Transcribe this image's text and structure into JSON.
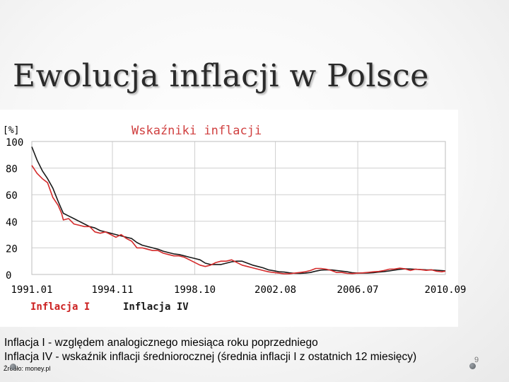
{
  "slide": {
    "title": "Ewolucja inflacji w Polsce",
    "caption_line1": "Inflacja I - względem analogicznego miesiąca roku poprzedniego",
    "caption_line2": "Inflacja IV - wskaźnik inflacji średniorocznej (średnia inflacji I z ostatnich 12 miesięcy)",
    "source": "Źródło: money.pl",
    "page_number": "9"
  },
  "chart_data": {
    "type": "line",
    "title": "Wskaźniki inflacji",
    "ylabel": "[%]",
    "xlabel": "",
    "ylim": [
      0,
      100
    ],
    "xlim": [
      "1991.01",
      "2010.09"
    ],
    "grid": true,
    "legend_position": "bottom-left",
    "colors": {
      "title": "#d04040",
      "legend": "#cc2222",
      "inflacja_I": "#d42a2a",
      "inflacja_IV": "#1a1a1a",
      "grid": "#cfcfcf",
      "axis_text": "#000000"
    },
    "x_ticks": [
      "1991.01",
      "1994.11",
      "1998.10",
      "2002.08",
      "2006.07",
      "2010.09"
    ],
    "y_ticks": [
      0,
      20,
      40,
      60,
      80,
      100
    ],
    "series": [
      {
        "name": "Inflacja I",
        "points": [
          [
            "1991.01",
            82
          ],
          [
            "1991.04",
            76
          ],
          [
            "1991.07",
            72
          ],
          [
            "1991.10",
            69
          ],
          [
            "1992.01",
            58
          ],
          [
            "1992.04",
            52
          ],
          [
            "1992.06",
            46
          ],
          [
            "1992.07",
            41
          ],
          [
            "1992.10",
            42
          ],
          [
            "1993.01",
            38
          ],
          [
            "1993.04",
            37
          ],
          [
            "1993.07",
            36
          ],
          [
            "1993.10",
            36
          ],
          [
            "1994.01",
            32
          ],
          [
            "1994.04",
            31
          ],
          [
            "1994.07",
            32
          ],
          [
            "1994.10",
            30
          ],
          [
            "1995.01",
            28
          ],
          [
            "1995.04",
            30
          ],
          [
            "1995.07",
            27
          ],
          [
            "1995.10",
            25
          ],
          [
            "1996.01",
            20
          ],
          [
            "1996.04",
            20
          ],
          [
            "1996.07",
            19
          ],
          [
            "1996.10",
            18
          ],
          [
            "1997.01",
            18
          ],
          [
            "1997.04",
            16
          ],
          [
            "1997.07",
            15
          ],
          [
            "1997.10",
            14
          ],
          [
            "1998.01",
            14
          ],
          [
            "1998.04",
            13
          ],
          [
            "1998.07",
            11
          ],
          [
            "1998.10",
            9
          ],
          [
            "1999.01",
            7
          ],
          [
            "1999.04",
            6
          ],
          [
            "1999.07",
            7
          ],
          [
            "1999.10",
            9
          ],
          [
            "2000.01",
            10
          ],
          [
            "2000.04",
            10
          ],
          [
            "2000.07",
            11
          ],
          [
            "2000.10",
            9
          ],
          [
            "2001.01",
            7
          ],
          [
            "2001.04",
            6
          ],
          [
            "2001.07",
            5
          ],
          [
            "2001.10",
            4
          ],
          [
            "2002.01",
            3
          ],
          [
            "2002.04",
            2
          ],
          [
            "2002.07",
            1.5
          ],
          [
            "2002.10",
            1
          ],
          [
            "2003.01",
            0.5
          ],
          [
            "2003.04",
            0.6
          ],
          [
            "2003.07",
            1
          ],
          [
            "2003.10",
            1.5
          ],
          [
            "2004.01",
            2
          ],
          [
            "2004.04",
            3
          ],
          [
            "2004.07",
            4.5
          ],
          [
            "2004.10",
            4.5
          ],
          [
            "2005.01",
            4
          ],
          [
            "2005.04",
            3
          ],
          [
            "2005.07",
            1.5
          ],
          [
            "2005.10",
            1.5
          ],
          [
            "2006.01",
            0.8
          ],
          [
            "2006.04",
            0.7
          ],
          [
            "2006.07",
            1
          ],
          [
            "2006.10",
            1.2
          ],
          [
            "2007.01",
            1.6
          ],
          [
            "2007.04",
            2
          ],
          [
            "2007.07",
            2.3
          ],
          [
            "2007.10",
            3
          ],
          [
            "2008.01",
            4
          ],
          [
            "2008.04",
            4.1
          ],
          [
            "2008.07",
            4.8
          ],
          [
            "2008.10",
            4.2
          ],
          [
            "2009.01",
            3
          ],
          [
            "2009.04",
            4
          ],
          [
            "2009.07",
            3.6
          ],
          [
            "2009.10",
            3.1
          ],
          [
            "2010.01",
            3.5
          ],
          [
            "2010.04",
            2.4
          ],
          [
            "2010.07",
            2
          ],
          [
            "2010.09",
            2.5
          ]
        ]
      },
      {
        "name": "Inflacja IV",
        "points": [
          [
            "1991.01",
            96
          ],
          [
            "1991.04",
            86
          ],
          [
            "1991.07",
            78
          ],
          [
            "1991.10",
            72
          ],
          [
            "1992.01",
            65
          ],
          [
            "1992.04",
            55
          ],
          [
            "1992.06",
            49
          ],
          [
            "1992.07",
            46
          ],
          [
            "1992.10",
            44
          ],
          [
            "1993.01",
            42
          ],
          [
            "1993.04",
            40
          ],
          [
            "1993.07",
            38
          ],
          [
            "1993.10",
            36
          ],
          [
            "1994.01",
            35
          ],
          [
            "1994.04",
            33
          ],
          [
            "1994.07",
            32
          ],
          [
            "1994.10",
            31
          ],
          [
            "1995.01",
            30
          ],
          [
            "1995.04",
            29
          ],
          [
            "1995.07",
            28
          ],
          [
            "1995.10",
            27
          ],
          [
            "1996.01",
            24
          ],
          [
            "1996.04",
            22
          ],
          [
            "1996.07",
            21
          ],
          [
            "1996.10",
            20
          ],
          [
            "1997.01",
            19
          ],
          [
            "1997.04",
            17.5
          ],
          [
            "1997.07",
            16.5
          ],
          [
            "1997.10",
            15.5
          ],
          [
            "1998.01",
            15
          ],
          [
            "1998.04",
            14
          ],
          [
            "1998.07",
            13
          ],
          [
            "1998.10",
            12
          ],
          [
            "1999.01",
            11
          ],
          [
            "1999.04",
            8.5
          ],
          [
            "1999.07",
            7.5
          ],
          [
            "1999.10",
            7.5
          ],
          [
            "2000.01",
            7.5
          ],
          [
            "2000.04",
            8.5
          ],
          [
            "2000.07",
            9.5
          ],
          [
            "2000.10",
            10
          ],
          [
            "2001.01",
            10
          ],
          [
            "2001.04",
            8.5
          ],
          [
            "2001.07",
            7
          ],
          [
            "2001.10",
            6
          ],
          [
            "2002.01",
            5
          ],
          [
            "2002.04",
            3.5
          ],
          [
            "2002.07",
            2.8
          ],
          [
            "2002.10",
            2
          ],
          [
            "2003.01",
            1.8
          ],
          [
            "2003.04",
            1.2
          ],
          [
            "2003.07",
            0.9
          ],
          [
            "2003.10",
            0.8
          ],
          [
            "2004.01",
            1
          ],
          [
            "2004.04",
            1.5
          ],
          [
            "2004.07",
            2.5
          ],
          [
            "2004.10",
            3.3
          ],
          [
            "2005.01",
            3.5
          ],
          [
            "2005.04",
            3.4
          ],
          [
            "2005.07",
            3
          ],
          [
            "2005.10",
            2.5
          ],
          [
            "2006.01",
            2
          ],
          [
            "2006.04",
            1.3
          ],
          [
            "2006.07",
            1
          ],
          [
            "2006.10",
            1
          ],
          [
            "2007.01",
            1.1
          ],
          [
            "2007.04",
            1.4
          ],
          [
            "2007.07",
            1.8
          ],
          [
            "2007.10",
            2.2
          ],
          [
            "2008.01",
            2.7
          ],
          [
            "2008.04",
            3.3
          ],
          [
            "2008.07",
            3.9
          ],
          [
            "2008.10",
            4.2
          ],
          [
            "2009.01",
            4.1
          ],
          [
            "2009.04",
            3.9
          ],
          [
            "2009.07",
            3.7
          ],
          [
            "2009.10",
            3.5
          ],
          [
            "2010.01",
            3.4
          ],
          [
            "2010.04",
            3.2
          ],
          [
            "2010.07",
            2.9
          ],
          [
            "2010.09",
            2.7
          ]
        ]
      }
    ]
  }
}
